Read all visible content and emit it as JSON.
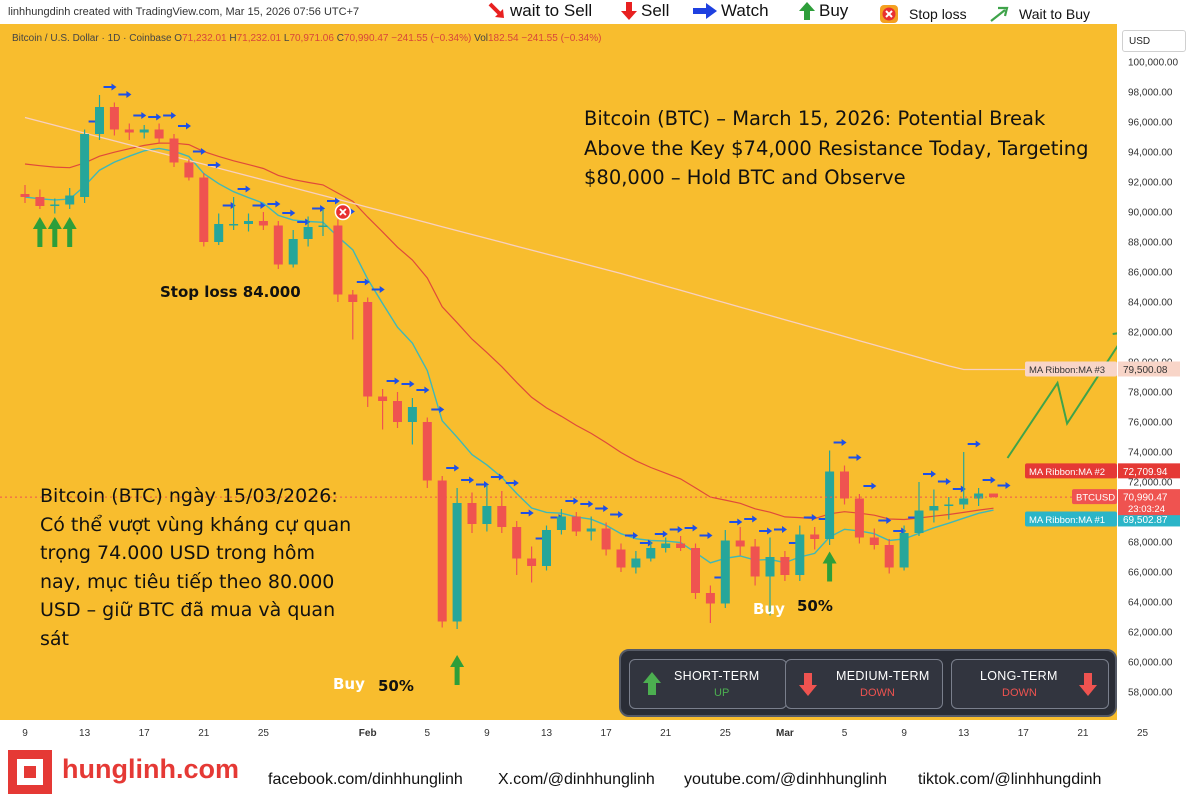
{
  "credit": "linhhungdinh created with TradingView.com, Mar 15, 2026 07:56 UTC+7",
  "legend": {
    "wait_sell": "wait to Sell",
    "sell": "Sell",
    "watch": "Watch",
    "buy": "Buy",
    "stop_loss": "Stop loss",
    "wait_buy": "Wait to Buy"
  },
  "symbol_info": {
    "name": "Bitcoin / U.S. Dollar · 1D · Coinbase",
    "o_label": "O",
    "o": "71,232.01",
    "h_label": "H",
    "h": "71,232.01",
    "l_label": "L",
    "l": "70,971.06",
    "c_label": "C",
    "c": "70,990.47",
    "change": "−241.55 (−0.34%)",
    "vol_label": "Vol",
    "vol": "182.54",
    "vol_change": "−241.55 (−0.34%)"
  },
  "currency": "USD",
  "title_en": "Bitcoin (BTC) – March 15, 2026: Potential Break Above the Key $74,000 Resistance Today, Targeting $80,000 – Hold BTC and Observe",
  "title_vi": "Bitcoin (BTC) ngày 15/03/2026: Có thể vượt vùng kháng cự quan trọng 74.000 USD trong hôm nay, mục tiêu tiếp theo 80.000 USD – giữ BTC đã mua và quan sát",
  "annotations": {
    "stop_loss": "Stop loss 84.000",
    "buy1": "Buy",
    "buy1_pct": "50%",
    "buy2": "Buy",
    "buy2_pct": "50%"
  },
  "trend": {
    "short": {
      "title": "SHORT-TERM",
      "value": "UP",
      "color": "#4caf50"
    },
    "medium": {
      "title": "MEDIUM-TERM",
      "value": "DOWN",
      "color": "#ef5350"
    },
    "long": {
      "title": "LONG-TERM",
      "value": "DOWN",
      "color": "#ef5350"
    }
  },
  "footer": {
    "brand": "hunglinh.com",
    "facebook": "facebook.com/dinhhunglinh",
    "x": "X.com/@dinhhunglinh",
    "youtube": "youtube.com/@dinhhunglinh",
    "tiktok": "tiktok.com/@linhhungdinh"
  },
  "colors": {
    "background": "#f8bd2e",
    "up": "#26a69a",
    "down": "#ef5350",
    "ma1": "#3fb8b8",
    "ma2": "#e04a3a",
    "ma3": "#f7d0c0",
    "watch_arrow": "#1e50e6",
    "projection": "#3fa34a"
  },
  "chart_data": {
    "type": "candlestick",
    "y_axis": {
      "min": 56500,
      "max": 101500,
      "ticks": [
        58000,
        60000,
        62000,
        64000,
        66000,
        68000,
        70000,
        72000,
        74000,
        76000,
        78000,
        80000,
        82000,
        84000,
        86000,
        88000,
        90000,
        92000,
        94000,
        96000,
        98000,
        100000
      ],
      "tick_labels": [
        "58,000.00",
        "60,000.00",
        "62,000.00",
        "64,000.00",
        "66,000.00",
        "68,000.00",
        "70,000.00",
        "72,000.00",
        "74,000.00",
        "76,000.00",
        "78,000.00",
        "80,000.00",
        "82,000.00",
        "84,000.00",
        "86,000.00",
        "88,000.00",
        "90,000.00",
        "92,000.00",
        "94,000.00",
        "96,000.00",
        "98,000.00",
        "100,000.00"
      ]
    },
    "x_axis": {
      "tick_labels": [
        {
          "label": "9",
          "date": "2026-01-09"
        },
        {
          "label": "13",
          "date": "2026-01-13"
        },
        {
          "label": "17",
          "date": "2026-01-17"
        },
        {
          "label": "21",
          "date": "2026-01-21"
        },
        {
          "label": "25",
          "date": "2026-01-25"
        },
        {
          "label": "Feb",
          "date": "2026-02-01"
        },
        {
          "label": "5",
          "date": "2026-02-05"
        },
        {
          "label": "9",
          "date": "2026-02-09"
        },
        {
          "label": "13",
          "date": "2026-02-13"
        },
        {
          "label": "17",
          "date": "2026-02-17"
        },
        {
          "label": "21",
          "date": "2026-02-21"
        },
        {
          "label": "25",
          "date": "2026-02-25"
        },
        {
          "label": "Mar",
          "date": "2026-03-01"
        },
        {
          "label": "5",
          "date": "2026-03-05"
        },
        {
          "label": "9",
          "date": "2026-03-09"
        },
        {
          "label": "13",
          "date": "2026-03-13"
        },
        {
          "label": "17",
          "date": "2026-03-17"
        },
        {
          "label": "21",
          "date": "2026-03-21"
        },
        {
          "label": "25",
          "date": "2026-03-25"
        }
      ]
    },
    "candles": [
      {
        "date": "2026-01-09",
        "o": 91200,
        "h": 91800,
        "l": 90600,
        "c": 91000
      },
      {
        "date": "2026-01-10",
        "o": 91000,
        "h": 91500,
        "l": 90200,
        "c": 90400
      },
      {
        "date": "2026-01-11",
        "o": 90400,
        "h": 90900,
        "l": 89900,
        "c": 90500
      },
      {
        "date": "2026-01-12",
        "o": 90500,
        "h": 91600,
        "l": 90200,
        "c": 91100
      },
      {
        "date": "2026-01-13",
        "o": 91000,
        "h": 95500,
        "l": 90600,
        "c": 95200
      },
      {
        "date": "2026-01-14",
        "o": 95200,
        "h": 97800,
        "l": 94800,
        "c": 97000
      },
      {
        "date": "2026-01-15",
        "o": 97000,
        "h": 97300,
        "l": 95100,
        "c": 95500
      },
      {
        "date": "2026-01-16",
        "o": 95500,
        "h": 95900,
        "l": 94800,
        "c": 95300
      },
      {
        "date": "2026-01-17",
        "o": 95300,
        "h": 95800,
        "l": 94900,
        "c": 95500
      },
      {
        "date": "2026-01-18",
        "o": 95500,
        "h": 95900,
        "l": 94600,
        "c": 94900
      },
      {
        "date": "2026-01-19",
        "o": 94900,
        "h": 95200,
        "l": 93000,
        "c": 93300
      },
      {
        "date": "2026-01-20",
        "o": 93300,
        "h": 93500,
        "l": 92100,
        "c": 92300
      },
      {
        "date": "2026-01-21",
        "o": 92300,
        "h": 92600,
        "l": 87700,
        "c": 88000
      },
      {
        "date": "2026-01-22",
        "o": 88000,
        "h": 89900,
        "l": 87800,
        "c": 89200
      },
      {
        "date": "2026-01-23",
        "o": 89200,
        "h": 91000,
        "l": 88800,
        "c": 89200
      },
      {
        "date": "2026-01-24",
        "o": 89200,
        "h": 89900,
        "l": 88700,
        "c": 89400
      },
      {
        "date": "2026-01-25",
        "o": 89400,
        "h": 90000,
        "l": 88800,
        "c": 89100
      },
      {
        "date": "2026-01-26",
        "o": 89100,
        "h": 89400,
        "l": 86200,
        "c": 86500
      },
      {
        "date": "2026-01-27",
        "o": 86500,
        "h": 88800,
        "l": 86300,
        "c": 88200
      },
      {
        "date": "2026-01-28",
        "o": 88200,
        "h": 89700,
        "l": 87700,
        "c": 89000
      },
      {
        "date": "2026-01-29",
        "o": 89000,
        "h": 90200,
        "l": 88400,
        "c": 89100
      },
      {
        "date": "2026-01-30",
        "o": 89100,
        "h": 89500,
        "l": 84000,
        "c": 84500
      },
      {
        "date": "2026-01-31",
        "o": 84500,
        "h": 84800,
        "l": 81500,
        "c": 84000
      },
      {
        "date": "2026-02-01",
        "o": 84000,
        "h": 84300,
        "l": 77000,
        "c": 77700
      },
      {
        "date": "2026-02-02",
        "o": 77700,
        "h": 78200,
        "l": 75500,
        "c": 77400
      },
      {
        "date": "2026-02-03",
        "o": 77400,
        "h": 78000,
        "l": 75600,
        "c": 76000
      },
      {
        "date": "2026-02-04",
        "o": 76000,
        "h": 77600,
        "l": 74500,
        "c": 77000
      },
      {
        "date": "2026-02-05",
        "o": 76000,
        "h": 76300,
        "l": 71600,
        "c": 72100
      },
      {
        "date": "2026-02-06",
        "o": 72100,
        "h": 72400,
        "l": 62300,
        "c": 62700
      },
      {
        "date": "2026-02-07",
        "o": 62700,
        "h": 71600,
        "l": 62200,
        "c": 70600
      },
      {
        "date": "2026-02-08",
        "o": 70600,
        "h": 71300,
        "l": 68600,
        "c": 69200
      },
      {
        "date": "2026-02-09",
        "o": 69200,
        "h": 71800,
        "l": 68700,
        "c": 70400
      },
      {
        "date": "2026-02-10",
        "o": 70400,
        "h": 71400,
        "l": 68600,
        "c": 69000
      },
      {
        "date": "2026-02-11",
        "o": 69000,
        "h": 69400,
        "l": 65800,
        "c": 66900
      },
      {
        "date": "2026-02-12",
        "o": 66900,
        "h": 67700,
        "l": 65300,
        "c": 66400
      },
      {
        "date": "2026-02-13",
        "o": 66400,
        "h": 69100,
        "l": 66100,
        "c": 68800
      },
      {
        "date": "2026-02-14",
        "o": 68800,
        "h": 70200,
        "l": 68500,
        "c": 69700
      },
      {
        "date": "2026-02-15",
        "o": 69700,
        "h": 70000,
        "l": 68400,
        "c": 68700
      },
      {
        "date": "2026-02-16",
        "o": 68700,
        "h": 69700,
        "l": 68100,
        "c": 68900
      },
      {
        "date": "2026-02-17",
        "o": 68900,
        "h": 69300,
        "l": 67100,
        "c": 67500
      },
      {
        "date": "2026-02-18",
        "o": 67500,
        "h": 67900,
        "l": 66000,
        "c": 66300
      },
      {
        "date": "2026-02-19",
        "o": 66300,
        "h": 67400,
        "l": 65900,
        "c": 66900
      },
      {
        "date": "2026-02-20",
        "o": 66900,
        "h": 68000,
        "l": 66700,
        "c": 67600
      },
      {
        "date": "2026-02-21",
        "o": 67600,
        "h": 68300,
        "l": 67300,
        "c": 67900
      },
      {
        "date": "2026-02-22",
        "o": 67900,
        "h": 68400,
        "l": 67400,
        "c": 67600
      },
      {
        "date": "2026-02-23",
        "o": 67600,
        "h": 67900,
        "l": 64200,
        "c": 64600
      },
      {
        "date": "2026-02-24",
        "o": 64600,
        "h": 65100,
        "l": 62600,
        "c": 63900
      },
      {
        "date": "2026-02-25",
        "o": 63900,
        "h": 68800,
        "l": 63600,
        "c": 68100
      },
      {
        "date": "2026-02-26",
        "o": 68100,
        "h": 69000,
        "l": 67100,
        "c": 67700
      },
      {
        "date": "2026-02-27",
        "o": 67700,
        "h": 68200,
        "l": 65100,
        "c": 65700
      },
      {
        "date": "2026-02-28",
        "o": 65700,
        "h": 68300,
        "l": 63100,
        "c": 67000
      },
      {
        "date": "2026-03-01",
        "o": 67000,
        "h": 67400,
        "l": 65400,
        "c": 65800
      },
      {
        "date": "2026-03-02",
        "o": 65800,
        "h": 69100,
        "l": 65400,
        "c": 68500
      },
      {
        "date": "2026-03-03",
        "o": 68500,
        "h": 69000,
        "l": 67500,
        "c": 68200
      },
      {
        "date": "2026-03-04",
        "o": 68200,
        "h": 74100,
        "l": 67800,
        "c": 72700
      },
      {
        "date": "2026-03-05",
        "o": 72700,
        "h": 73100,
        "l": 70500,
        "c": 70900
      },
      {
        "date": "2026-03-06",
        "o": 70900,
        "h": 71200,
        "l": 67900,
        "c": 68300
      },
      {
        "date": "2026-03-07",
        "o": 68300,
        "h": 68900,
        "l": 67500,
        "c": 67800
      },
      {
        "date": "2026-03-08",
        "o": 67800,
        "h": 68200,
        "l": 65900,
        "c": 66300
      },
      {
        "date": "2026-03-09",
        "o": 66300,
        "h": 69100,
        "l": 66100,
        "c": 68600
      },
      {
        "date": "2026-03-10",
        "o": 68600,
        "h": 72000,
        "l": 68400,
        "c": 70100
      },
      {
        "date": "2026-03-11",
        "o": 70100,
        "h": 71500,
        "l": 69300,
        "c": 70400
      },
      {
        "date": "2026-03-12",
        "o": 70400,
        "h": 71000,
        "l": 69500,
        "c": 70500
      },
      {
        "date": "2026-03-13",
        "o": 70500,
        "h": 74000,
        "l": 70200,
        "c": 70900
      },
      {
        "date": "2026-03-14",
        "o": 70900,
        "h": 71600,
        "l": 70400,
        "c": 71232
      },
      {
        "date": "2026-03-15",
        "o": 71232,
        "h": 71232,
        "l": 70971,
        "c": 70990
      }
    ],
    "ma_ribbon": [
      {
        "label": "MA Ribbon:MA #1",
        "last": "69,502.87"
      },
      {
        "label": "MA Ribbon:MA #2",
        "last": "72,709.94"
      },
      {
        "label": "MA Ribbon:MA #3",
        "last": "79,500.08"
      }
    ],
    "price_tag": {
      "symbol": "BTCUSD",
      "price": "70,990.47",
      "countdown": "23:03:24"
    },
    "projection_path": [
      {
        "date": "2026-03-15",
        "y": 73600
      },
      {
        "date": "2026-03-19",
        "y": 75900
      },
      {
        "date": "2026-03-23",
        "y": 82000
      }
    ],
    "signals": {
      "stop_loss": [
        {
          "date": "2026-01-30",
          "y": 90000
        }
      ],
      "buy": [
        {
          "date": "2026-01-10",
          "y": 89000
        },
        {
          "date": "2026-01-11",
          "y": 89000
        },
        {
          "date": "2026-01-12",
          "y": 89000
        },
        {
          "date": "2026-02-07",
          "y": 59800
        },
        {
          "date": "2026-03-04",
          "y": 66700
        }
      ]
    }
  }
}
